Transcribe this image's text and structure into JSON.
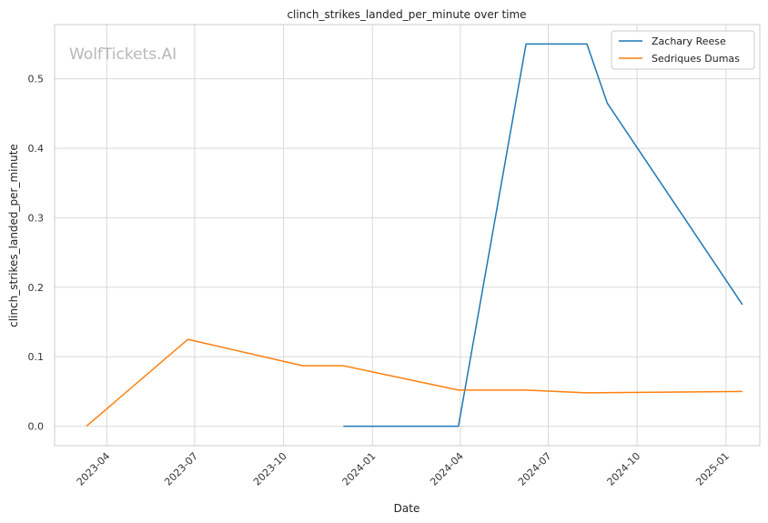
{
  "chart_data": {
    "type": "line",
    "title": "clinch_strikes_landed_per_minute over time",
    "xlabel": "Date",
    "ylabel": "clinch_strikes_landed_per_minute",
    "watermark": "WolfTickets.AI",
    "xlim": [
      "2023-02-06",
      "2025-02-05"
    ],
    "ylim": [
      -0.028,
      0.578
    ],
    "x_ticks": [
      "2023-04-01",
      "2023-07-01",
      "2023-10-01",
      "2024-01-01",
      "2024-04-01",
      "2024-07-01",
      "2024-10-01",
      "2025-01-01"
    ],
    "x_tick_labels": [
      "2023-04",
      "2023-07",
      "2023-10",
      "2024-01",
      "2024-04",
      "2024-07",
      "2024-10",
      "2025-01"
    ],
    "y_ticks": [
      0.0,
      0.1,
      0.2,
      0.3,
      0.4,
      0.5
    ],
    "y_tick_labels": [
      "0.0",
      "0.1",
      "0.2",
      "0.3",
      "0.4",
      "0.5"
    ],
    "grid": true,
    "legend_position": "top-right",
    "series": [
      {
        "name": "Zachary Reese",
        "color": "#1f77b4",
        "points": [
          [
            "2023-12-02",
            0.0
          ],
          [
            "2024-03-30",
            0.0
          ],
          [
            "2024-06-08",
            0.55
          ],
          [
            "2024-08-10",
            0.55
          ],
          [
            "2024-08-31",
            0.465
          ],
          [
            "2025-01-18",
            0.175
          ]
        ]
      },
      {
        "name": "Sedriques Dumas",
        "color": "#ff7f0e",
        "points": [
          [
            "2023-03-11",
            0.0
          ],
          [
            "2023-06-24",
            0.125
          ],
          [
            "2023-10-21",
            0.087
          ],
          [
            "2023-12-02",
            0.087
          ],
          [
            "2024-03-30",
            0.052
          ],
          [
            "2024-06-08",
            0.052
          ],
          [
            "2024-08-10",
            0.048
          ],
          [
            "2025-01-18",
            0.05
          ]
        ]
      }
    ]
  }
}
